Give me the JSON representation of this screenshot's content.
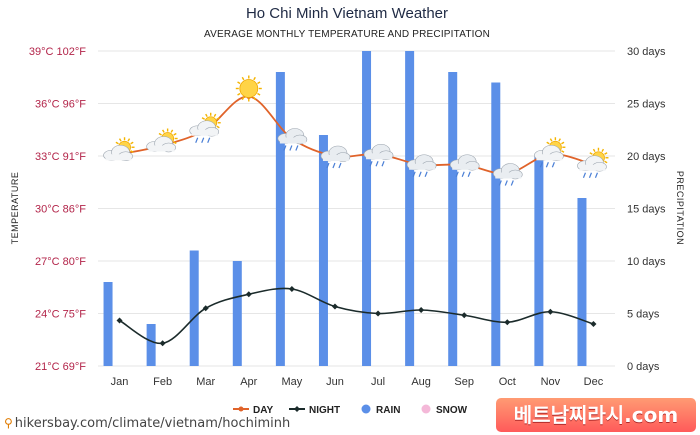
{
  "chart_data": {
    "type": "bar+line",
    "title": "Ho Chi Minh Vietnam Weather",
    "subtitle": "AVERAGE MONTHLY TEMPERATURE AND PRECIPITATION",
    "categories": [
      "Jan",
      "Feb",
      "Mar",
      "Apr",
      "May",
      "Jun",
      "Jul",
      "Aug",
      "Sep",
      "Oct",
      "Nov",
      "Dec"
    ],
    "temp_ylabel": "TEMPERATURE",
    "precip_ylabel": "PRECIPITATION",
    "temp_ylim": [
      21,
      39
    ],
    "precip_ylim": [
      0,
      30
    ],
    "temp_ticks": [
      "21°C 69°F",
      "24°C 75°F",
      "27°C 80°F",
      "30°C 86°F",
      "33°C 91°F",
      "36°C 96°F",
      "39°C 102°F"
    ],
    "temp_tick_values": [
      21,
      24,
      27,
      30,
      33,
      36,
      39
    ],
    "precip_ticks": [
      "0 days",
      "5 days",
      "10 days",
      "15 days",
      "20 days",
      "25 days",
      "30 days"
    ],
    "precip_tick_values": [
      0,
      5,
      10,
      15,
      20,
      25,
      30
    ],
    "series": [
      {
        "name": "DAY",
        "kind": "line",
        "color": "#e0632a",
        "values": [
          33.1,
          33.6,
          34.5,
          36.4,
          34.0,
          33.0,
          33.1,
          32.5,
          32.5,
          32.0,
          33.1,
          32.5
        ],
        "icons": [
          "sun-cloud",
          "sun-cloud",
          "sun-cloud-rain",
          "sun",
          "cloud-rain",
          "cloud-rain",
          "cloud-rain",
          "cloud-rain",
          "cloud-rain",
          "cloud-rain",
          "sun-cloud-rain",
          "sun-cloud-rain"
        ]
      },
      {
        "name": "NIGHT",
        "kind": "line",
        "color": "#1b2b2b",
        "values": [
          23.6,
          22.3,
          24.3,
          25.1,
          25.4,
          24.4,
          24.0,
          24.2,
          23.9,
          23.5,
          24.1,
          23.4
        ]
      },
      {
        "name": "RAIN",
        "kind": "bar",
        "color": "#5b8fe8",
        "values": [
          8,
          4,
          11,
          10,
          28,
          22,
          30,
          30,
          28,
          27,
          20,
          16
        ]
      },
      {
        "name": "SNOW",
        "kind": "bar",
        "color": "#f4b8d8",
        "values": [
          0,
          0,
          0,
          0,
          0,
          0,
          0,
          0,
          0,
          0,
          0,
          0
        ]
      }
    ]
  },
  "footer": {
    "source_text": "hikersbay.com/climate/vietnam/hochiminh",
    "pin_icon": "map-pin-icon",
    "brand_text": "베트남찌라시.com"
  }
}
